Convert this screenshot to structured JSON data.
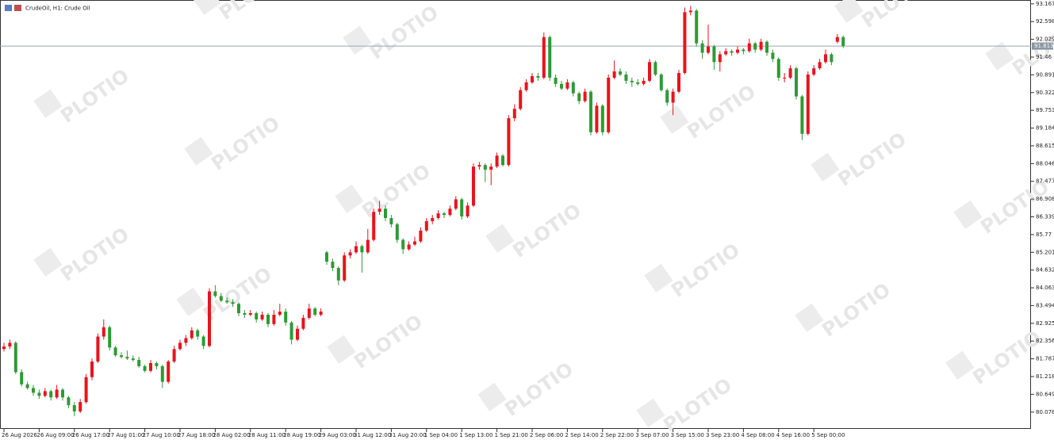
{
  "chart_data": {
    "type": "candlestick",
    "title": "CrudeOil, H1:  Crude Oil",
    "watermark": "PLOTIO",
    "up_color": "#e8131d",
    "down_color": "#2e9a34",
    "ylim": [
      79.54,
      93.29
    ],
    "yticks": [
      93.167,
      92.598,
      92.029,
      91.46,
      90.891,
      90.322,
      89.753,
      89.184,
      88.615,
      88.046,
      87.477,
      86.908,
      86.339,
      85.77,
      85.201,
      84.632,
      84.063,
      83.494,
      82.925,
      82.356,
      81.787,
      81.218,
      80.649,
      80.078
    ],
    "current_price": 91.813,
    "categories": [
      "26 Aug 2026",
      null,
      null,
      null,
      null,
      null,
      "26 Aug 09:00",
      null,
      null,
      null,
      null,
      null,
      "26 Aug 17:00",
      null,
      null,
      null,
      null,
      null,
      "27 Aug 01:00",
      null,
      null,
      null,
      null,
      null,
      "27 Aug 10:00",
      null,
      null,
      null,
      null,
      null,
      "27 Aug 18:00",
      null,
      null,
      null,
      null,
      null,
      "28 Aug 02:00",
      null,
      null,
      null,
      null,
      null,
      "28 Aug 11:00",
      null,
      null,
      null,
      null,
      null,
      "28 Aug 19:00",
      null,
      null,
      null,
      null,
      null,
      "29 Aug 03:00",
      null,
      null,
      null,
      null,
      null,
      "31 Aug 12:00",
      null,
      null,
      null,
      null,
      null,
      "31 Aug 20:00",
      null,
      null,
      null,
      null,
      null,
      "1 Sep 04:00",
      null,
      null,
      null,
      null,
      null,
      "1 Sep 13:00",
      null,
      null,
      null,
      null,
      null,
      "1 Sep 21:00",
      null,
      null,
      null,
      null,
      null,
      "2 Sep 06:00",
      null,
      null,
      null,
      null,
      null,
      "2 Sep 14:00",
      null,
      null,
      null,
      null,
      null,
      "2 Sep 22:00",
      null,
      null,
      null,
      null,
      null,
      "3 Sep 07:00",
      null,
      null,
      null,
      null,
      null,
      "3 Sep 15:00",
      null,
      null,
      null,
      null,
      null,
      "3 Sep 23:00",
      null,
      null,
      null,
      null,
      null,
      "4 Sep 08:00",
      null,
      null,
      null,
      null,
      null,
      "4 Sep 16:00",
      null,
      null,
      null,
      null,
      null,
      "5 Sep 00:00",
      null,
      null,
      null,
      null,
      null
    ],
    "ohlc": [
      [
        82.1,
        82.3,
        82.02,
        82.18
      ],
      [
        82.18,
        82.4,
        82.1,
        82.3
      ],
      [
        82.3,
        82.35,
        81.3,
        81.36
      ],
      [
        81.36,
        81.45,
        80.9,
        80.97
      ],
      [
        80.97,
        81.05,
        80.8,
        80.85
      ],
      [
        80.85,
        80.95,
        80.6,
        80.7
      ],
      [
        80.7,
        80.8,
        80.5,
        80.6
      ],
      [
        80.6,
        80.85,
        80.55,
        80.75
      ],
      [
        80.75,
        80.8,
        80.45,
        80.55
      ],
      [
        80.55,
        80.95,
        80.5,
        80.8
      ],
      [
        80.8,
        80.85,
        80.45,
        80.55
      ],
      [
        80.55,
        80.6,
        80.2,
        80.3
      ],
      [
        80.3,
        80.4,
        79.95,
        80.1
      ],
      [
        80.1,
        80.5,
        80.05,
        80.4
      ],
      [
        80.4,
        81.3,
        80.35,
        81.2
      ],
      [
        81.2,
        81.8,
        81.1,
        81.7
      ],
      [
        81.7,
        82.6,
        81.65,
        82.5
      ],
      [
        82.5,
        83.05,
        82.4,
        82.8
      ],
      [
        82.8,
        82.85,
        82.05,
        82.15
      ],
      [
        82.15,
        82.2,
        81.85,
        81.9
      ],
      [
        81.9,
        82.0,
        81.8,
        81.85
      ],
      [
        81.85,
        82.05,
        81.75,
        81.8
      ],
      [
        81.8,
        81.9,
        81.7,
        81.75
      ],
      [
        81.75,
        81.85,
        81.5,
        81.55
      ],
      [
        81.55,
        81.6,
        81.35,
        81.4
      ],
      [
        81.4,
        81.75,
        81.35,
        81.65
      ],
      [
        81.65,
        81.7,
        81.45,
        81.55
      ],
      [
        81.55,
        81.6,
        80.85,
        81.05
      ],
      [
        81.05,
        81.75,
        81.0,
        81.7
      ],
      [
        81.7,
        82.2,
        81.65,
        82.1
      ],
      [
        82.1,
        82.4,
        82.05,
        82.3
      ],
      [
        82.3,
        82.55,
        82.2,
        82.45
      ],
      [
        82.45,
        82.8,
        82.4,
        82.7
      ],
      [
        82.7,
        82.75,
        82.4,
        82.5
      ],
      [
        82.5,
        82.55,
        82.1,
        82.2
      ],
      [
        82.2,
        84.05,
        82.15,
        83.95
      ],
      [
        83.95,
        84.15,
        83.75,
        83.8
      ],
      [
        83.8,
        83.9,
        83.6,
        83.65
      ],
      [
        83.65,
        83.75,
        83.55,
        83.6
      ],
      [
        83.6,
        83.7,
        83.45,
        83.55
      ],
      [
        83.55,
        83.6,
        83.15,
        83.25
      ],
      [
        83.25,
        83.35,
        83.1,
        83.2
      ],
      [
        83.2,
        83.35,
        83.15,
        83.25
      ],
      [
        83.25,
        83.3,
        82.95,
        83.05
      ],
      [
        83.05,
        83.3,
        83.0,
        83.2
      ],
      [
        83.2,
        83.25,
        82.8,
        82.9
      ],
      [
        82.9,
        83.35,
        82.85,
        83.2
      ],
      [
        83.2,
        83.55,
        83.15,
        83.3
      ],
      [
        83.3,
        83.4,
        82.85,
        82.95
      ],
      [
        82.95,
        83.0,
        82.25,
        82.4
      ],
      [
        82.4,
        82.85,
        82.35,
        82.75
      ],
      [
        82.75,
        83.2,
        82.7,
        83.1
      ],
      [
        83.1,
        83.55,
        83.05,
        83.4
      ],
      [
        83.4,
        83.45,
        83.15,
        83.2
      ],
      [
        83.2,
        83.4,
        83.15,
        83.3
      ],
      [
        85.2,
        85.25,
        84.8,
        84.9
      ],
      [
        84.9,
        85.0,
        84.6,
        84.7
      ],
      [
        84.7,
        84.75,
        84.15,
        84.3
      ],
      [
        84.3,
        85.2,
        84.25,
        85.1
      ],
      [
        85.1,
        85.3,
        85.0,
        85.2
      ],
      [
        85.2,
        85.55,
        85.15,
        85.4
      ],
      [
        85.4,
        85.45,
        84.55,
        85.2
      ],
      [
        85.2,
        85.95,
        85.15,
        85.6
      ],
      [
        85.6,
        86.6,
        85.55,
        86.5
      ],
      [
        86.5,
        86.85,
        86.4,
        86.6
      ],
      [
        86.6,
        86.7,
        86.2,
        86.3
      ],
      [
        86.3,
        86.4,
        86.0,
        86.1
      ],
      [
        86.1,
        86.15,
        85.5,
        85.6
      ],
      [
        85.6,
        85.65,
        85.15,
        85.3
      ],
      [
        85.3,
        85.55,
        85.25,
        85.45
      ],
      [
        85.45,
        85.7,
        85.4,
        85.55
      ],
      [
        85.55,
        86.0,
        85.5,
        85.9
      ],
      [
        85.9,
        86.3,
        85.85,
        86.2
      ],
      [
        86.2,
        86.4,
        86.1,
        86.3
      ],
      [
        86.3,
        86.55,
        86.25,
        86.45
      ],
      [
        86.45,
        86.5,
        86.3,
        86.4
      ],
      [
        86.4,
        86.7,
        86.35,
        86.6
      ],
      [
        86.6,
        87.0,
        86.55,
        86.9
      ],
      [
        86.9,
        86.95,
        86.25,
        86.35
      ],
      [
        86.35,
        86.8,
        86.3,
        86.7
      ],
      [
        86.7,
        88.05,
        86.65,
        87.95
      ],
      [
        87.95,
        88.1,
        87.85,
        88.0
      ],
      [
        88.0,
        88.05,
        87.45,
        87.85
      ],
      [
        87.85,
        88.05,
        87.35,
        87.95
      ],
      [
        87.95,
        88.4,
        87.9,
        88.3
      ],
      [
        88.3,
        88.35,
        87.95,
        88.0
      ],
      [
        88.0,
        89.6,
        87.95,
        89.5
      ],
      [
        89.5,
        89.95,
        89.4,
        89.8
      ],
      [
        89.8,
        90.5,
        89.75,
        90.4
      ],
      [
        90.4,
        90.75,
        90.35,
        90.65
      ],
      [
        90.65,
        90.95,
        90.6,
        90.85
      ],
      [
        90.85,
        90.95,
        90.7,
        90.8
      ],
      [
        90.8,
        92.25,
        90.75,
        92.1
      ],
      [
        92.1,
        92.15,
        90.7,
        90.8
      ],
      [
        90.8,
        90.9,
        90.5,
        90.6
      ],
      [
        90.6,
        90.7,
        90.4,
        90.45
      ],
      [
        90.45,
        90.75,
        90.4,
        90.65
      ],
      [
        90.65,
        90.7,
        90.2,
        90.3
      ],
      [
        90.3,
        90.35,
        89.95,
        90.05
      ],
      [
        90.05,
        90.45,
        90.0,
        90.35
      ],
      [
        90.35,
        90.4,
        88.95,
        89.05
      ],
      [
        89.05,
        90.0,
        89.0,
        89.9
      ],
      [
        89.9,
        89.95,
        88.95,
        89.05
      ],
      [
        89.05,
        90.9,
        89.0,
        90.8
      ],
      [
        90.8,
        91.35,
        90.75,
        91.0
      ],
      [
        91.0,
        91.1,
        90.85,
        90.9
      ],
      [
        90.9,
        91.0,
        90.6,
        90.7
      ],
      [
        90.7,
        90.8,
        90.5,
        90.65
      ],
      [
        90.65,
        90.75,
        90.55,
        90.6
      ],
      [
        90.6,
        90.8,
        90.55,
        90.7
      ],
      [
        90.7,
        91.4,
        90.65,
        91.3
      ],
      [
        91.3,
        91.35,
        90.85,
        90.9
      ],
      [
        90.9,
        90.95,
        90.35,
        90.4
      ],
      [
        90.4,
        90.45,
        89.9,
        90.0
      ],
      [
        90.0,
        90.45,
        89.6,
        90.35
      ],
      [
        90.35,
        91.05,
        90.3,
        90.95
      ],
      [
        90.95,
        93.05,
        90.9,
        92.9
      ],
      [
        92.9,
        93.1,
        92.8,
        92.95
      ],
      [
        92.95,
        93.0,
        91.8,
        91.9
      ],
      [
        91.9,
        92.0,
        91.4,
        91.6
      ],
      [
        91.6,
        92.5,
        91.55,
        91.8
      ],
      [
        91.8,
        91.85,
        91.05,
        91.3
      ],
      [
        91.3,
        91.65,
        91.0,
        91.55
      ],
      [
        91.55,
        91.75,
        91.5,
        91.65
      ],
      [
        91.65,
        91.7,
        91.5,
        91.6
      ],
      [
        91.6,
        91.8,
        91.55,
        91.7
      ],
      [
        91.7,
        91.75,
        91.55,
        91.65
      ],
      [
        91.65,
        92.05,
        91.6,
        91.9
      ],
      [
        91.9,
        91.95,
        91.6,
        91.7
      ],
      [
        91.7,
        92.05,
        91.65,
        91.95
      ],
      [
        91.95,
        92.0,
        91.5,
        91.6
      ],
      [
        91.6,
        91.7,
        91.3,
        91.4
      ],
      [
        91.4,
        91.45,
        90.7,
        90.8
      ],
      [
        90.8,
        90.95,
        90.65,
        90.8
      ],
      [
        90.8,
        91.2,
        90.75,
        91.1
      ],
      [
        91.1,
        91.15,
        90.1,
        90.2
      ],
      [
        90.2,
        90.25,
        88.8,
        89.0
      ],
      [
        89.0,
        91.0,
        88.95,
        90.9
      ],
      [
        90.9,
        91.2,
        90.85,
        91.1
      ],
      [
        91.1,
        91.4,
        91.05,
        91.3
      ],
      [
        91.3,
        91.7,
        91.25,
        91.55
      ],
      [
        91.55,
        91.6,
        91.2,
        91.3
      ],
      [
        91.95,
        92.2,
        91.9,
        92.1
      ],
      [
        92.1,
        92.15,
        91.75,
        91.813
      ]
    ]
  }
}
